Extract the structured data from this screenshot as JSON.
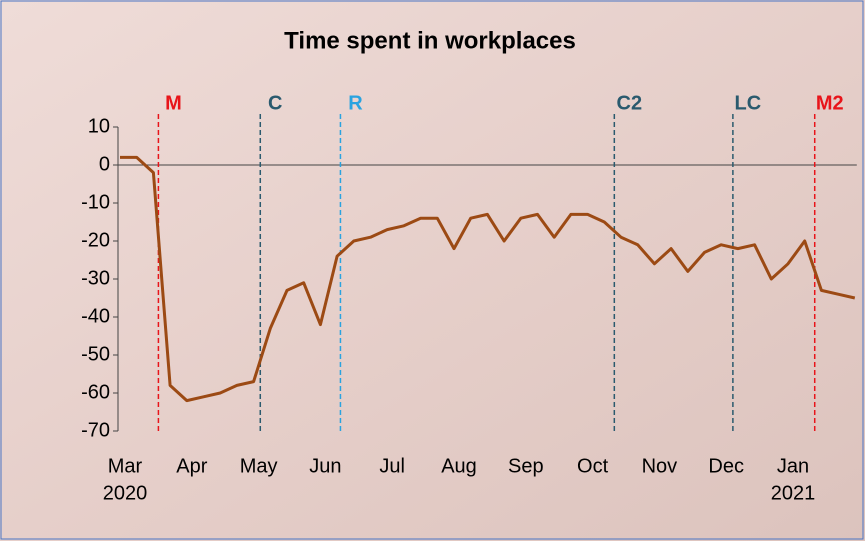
{
  "chart_data": {
    "type": "line",
    "title": "Time spent in workplaces",
    "categories": [
      "Mar",
      null,
      null,
      null,
      "Apr",
      null,
      null,
      null,
      "May",
      null,
      null,
      null,
      "Jun",
      null,
      null,
      null,
      "Jul",
      null,
      null,
      null,
      "Aug",
      null,
      null,
      null,
      "Sep",
      null,
      null,
      null,
      "Oct",
      null,
      null,
      null,
      "Nov",
      null,
      null,
      null,
      "Dec",
      null,
      null,
      null,
      "Jan",
      null,
      null,
      null,
      null
    ],
    "year_labels": [
      "2020",
      "2021"
    ],
    "series": [
      {
        "color": "#9c4a14",
        "values": [
          2,
          2,
          -2,
          -58,
          -62,
          -61,
          -60,
          -58,
          -57,
          -43,
          -33,
          -31,
          -42,
          -24,
          -20,
          -19,
          -17,
          -16,
          -14,
          -14,
          -22,
          -14,
          -13,
          -20,
          -14,
          -13,
          -19,
          -13,
          -13,
          -15,
          -19,
          -21,
          -26,
          -22,
          -28,
          -23,
          -21,
          -22,
          -21,
          -30,
          -26,
          -20,
          -33,
          -34,
          -35
        ]
      }
    ],
    "annotations": [
      {
        "label": "M",
        "x": 2.3,
        "color": "#e8141a"
      },
      {
        "label": "C",
        "x": 8.4,
        "color": "#2a5a6e"
      },
      {
        "label": "R",
        "x": 13.2,
        "color": "#29a3e0"
      },
      {
        "label": "C2",
        "x": 29.6,
        "color": "#2a5a6e"
      },
      {
        "label": "LC",
        "x": 36.7,
        "color": "#2a5a6e"
      },
      {
        "label": "M2",
        "x": 41.6,
        "color": "#e8141a"
      }
    ],
    "ylim": [
      -70,
      10
    ],
    "yticks": [
      -70,
      -60,
      -50,
      -40,
      -30,
      -20,
      -10,
      0,
      10
    ],
    "grid": false
  }
}
